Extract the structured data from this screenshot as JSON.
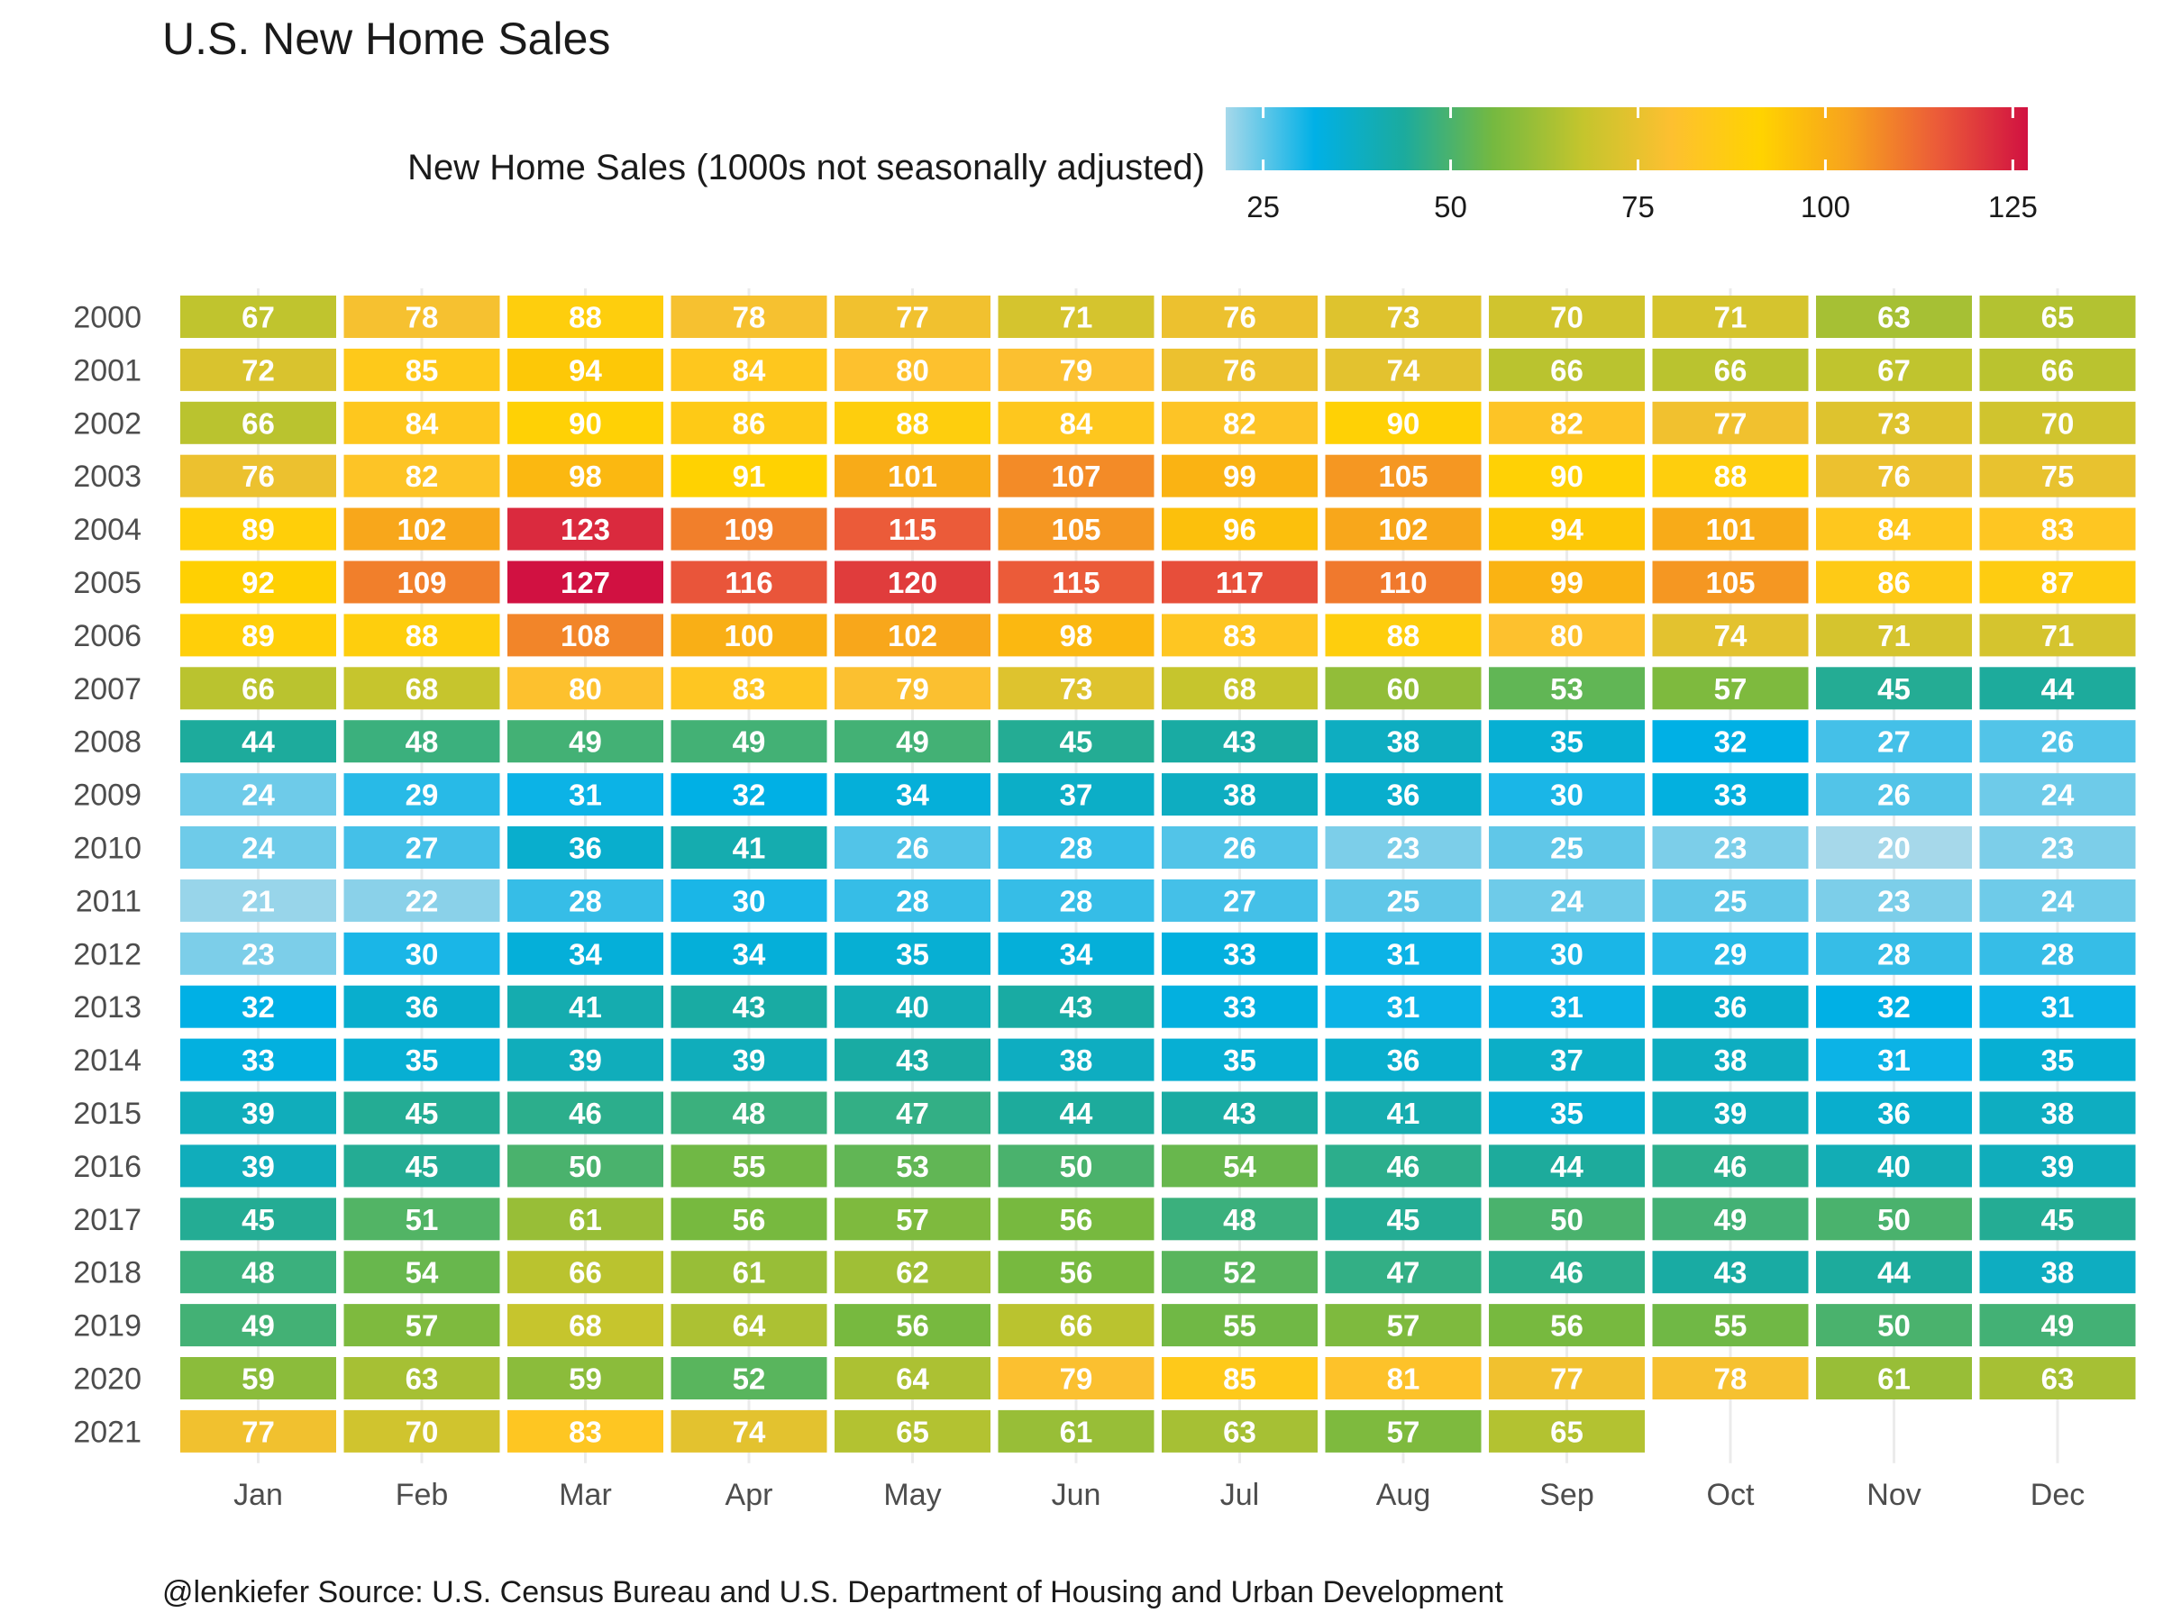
{
  "chart_data": {
    "type": "heatmap",
    "title": "U.S. New Home Sales",
    "legend": {
      "title": "New Home Sales (1000s not seasonally adjusted)",
      "placement": "top-right",
      "range": [
        20,
        127
      ],
      "ticks": [
        25,
        50,
        75,
        100,
        125
      ],
      "colors": [
        "#a6d8ea",
        "#00b0e6",
        "#1bab9e",
        "#75b940",
        "#c4c52d",
        "#fdc030",
        "#ffd300",
        "#f7a21e",
        "#eb5a39",
        "#d11141"
      ]
    },
    "x_categories": [
      "Jan",
      "Feb",
      "Mar",
      "Apr",
      "May",
      "Jun",
      "Jul",
      "Aug",
      "Sep",
      "Oct",
      "Nov",
      "Dec"
    ],
    "y_categories": [
      "2000",
      "2001",
      "2002",
      "2003",
      "2004",
      "2005",
      "2006",
      "2007",
      "2008",
      "2009",
      "2010",
      "2011",
      "2012",
      "2013",
      "2014",
      "2015",
      "2016",
      "2017",
      "2018",
      "2019",
      "2020",
      "2021"
    ],
    "values": [
      [
        67,
        78,
        88,
        78,
        77,
        71,
        76,
        73,
        70,
        71,
        63,
        65
      ],
      [
        72,
        85,
        94,
        84,
        80,
        79,
        76,
        74,
        66,
        66,
        67,
        66
      ],
      [
        66,
        84,
        90,
        86,
        88,
        84,
        82,
        90,
        82,
        77,
        73,
        70
      ],
      [
        76,
        82,
        98,
        91,
        101,
        107,
        99,
        105,
        90,
        88,
        76,
        75
      ],
      [
        89,
        102,
        123,
        109,
        115,
        105,
        96,
        102,
        94,
        101,
        84,
        83
      ],
      [
        92,
        109,
        127,
        116,
        120,
        115,
        117,
        110,
        99,
        105,
        86,
        87
      ],
      [
        89,
        88,
        108,
        100,
        102,
        98,
        83,
        88,
        80,
        74,
        71,
        71
      ],
      [
        66,
        68,
        80,
        83,
        79,
        73,
        68,
        60,
        53,
        57,
        45,
        44
      ],
      [
        44,
        48,
        49,
        49,
        49,
        45,
        43,
        38,
        35,
        32,
        27,
        26
      ],
      [
        24,
        29,
        31,
        32,
        34,
        37,
        38,
        36,
        30,
        33,
        26,
        24
      ],
      [
        24,
        27,
        36,
        41,
        26,
        28,
        26,
        23,
        25,
        23,
        20,
        23
      ],
      [
        21,
        22,
        28,
        30,
        28,
        28,
        27,
        25,
        24,
        25,
        23,
        24
      ],
      [
        23,
        30,
        34,
        34,
        35,
        34,
        33,
        31,
        30,
        29,
        28,
        28
      ],
      [
        32,
        36,
        41,
        43,
        40,
        43,
        33,
        31,
        31,
        36,
        32,
        31
      ],
      [
        33,
        35,
        39,
        39,
        43,
        38,
        35,
        36,
        37,
        38,
        31,
        35
      ],
      [
        39,
        45,
        46,
        48,
        47,
        44,
        43,
        41,
        35,
        39,
        36,
        38
      ],
      [
        39,
        45,
        50,
        55,
        53,
        50,
        54,
        46,
        44,
        46,
        40,
        39
      ],
      [
        45,
        51,
        61,
        56,
        57,
        56,
        48,
        45,
        50,
        49,
        50,
        45
      ],
      [
        48,
        54,
        66,
        61,
        62,
        56,
        52,
        47,
        46,
        43,
        44,
        38
      ],
      [
        49,
        57,
        68,
        64,
        56,
        66,
        55,
        57,
        56,
        55,
        50,
        49
      ],
      [
        59,
        63,
        59,
        52,
        64,
        79,
        85,
        81,
        77,
        78,
        61,
        63
      ],
      [
        77,
        70,
        83,
        74,
        65,
        61,
        63,
        57,
        65,
        null,
        null,
        null
      ]
    ],
    "grid": true,
    "caption": "@lenkiefer Source: U.S. Census Bureau and  U.S. Department of Housing and Urban Development"
  }
}
